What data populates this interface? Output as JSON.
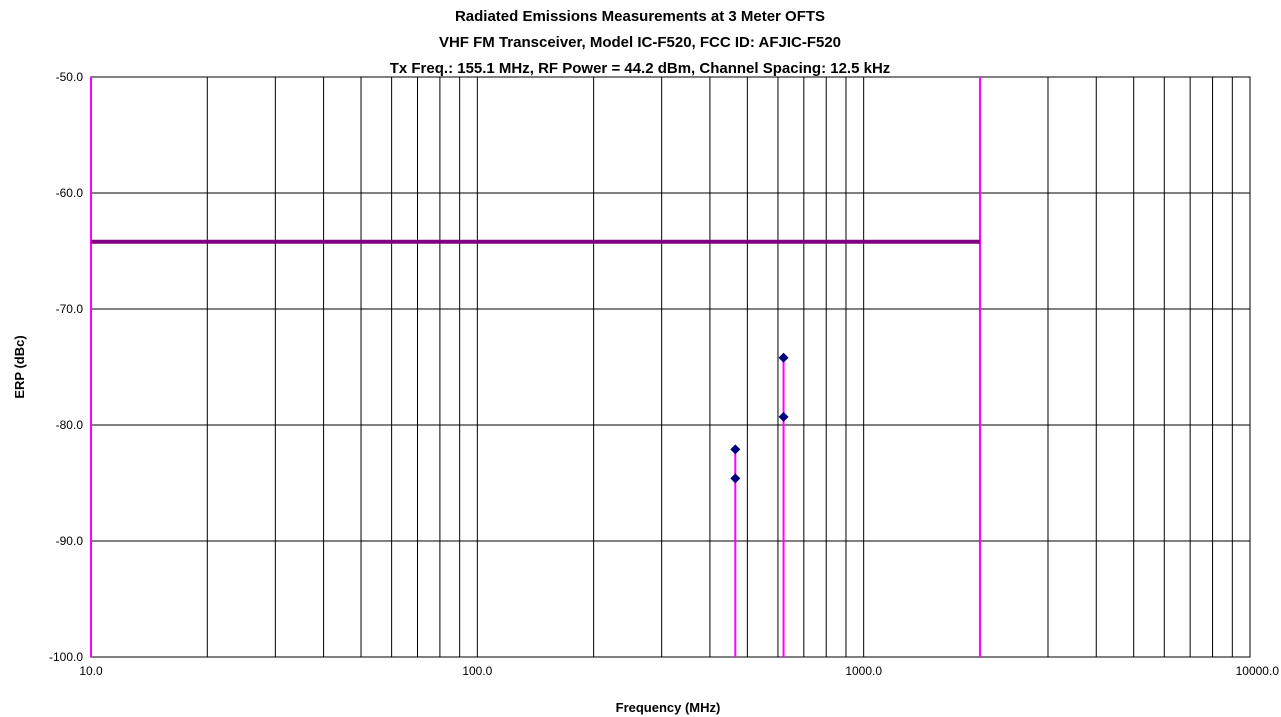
{
  "chart_data": {
    "type": "scatter",
    "title_lines": [
      "Radiated Emissions Measurements at 3 Meter OFTS",
      "VHF FM Transceiver, Model IC-F520, FCC ID: AFJIC-F520",
      "Tx Freq.: 155.1 MHz, RF Power = 44.2 dBm, Channel Spacing: 12.5 kHz"
    ],
    "xlabel": "Frequency (MHz)",
    "ylabel": "ERP (dBc)",
    "x_scale": "log",
    "xlim": [
      10,
      10000
    ],
    "ylim": [
      -100,
      -50
    ],
    "x_tick_labels": [
      "10.0",
      "100.0",
      "1000.0",
      "10000.0"
    ],
    "y_tick_labels": [
      "-50.0",
      "-60.0",
      "-70.0",
      "-80.0",
      "-90.0",
      "-100.0"
    ],
    "grid": true,
    "limit_line": {
      "y": -64.2,
      "x_range": [
        10,
        2000
      ],
      "color": "#800080"
    },
    "range_markers": {
      "x": [
        10,
        2000
      ],
      "color": "#ff00ff"
    },
    "points": [
      {
        "x": 465.3,
        "y": -82.1
      },
      {
        "x": 465.3,
        "y": -84.6
      },
      {
        "x": 620.4,
        "y": -74.2
      },
      {
        "x": 620.4,
        "y": -79.3
      }
    ],
    "point_color": "#000080",
    "stem_color": "#ff00ff"
  }
}
